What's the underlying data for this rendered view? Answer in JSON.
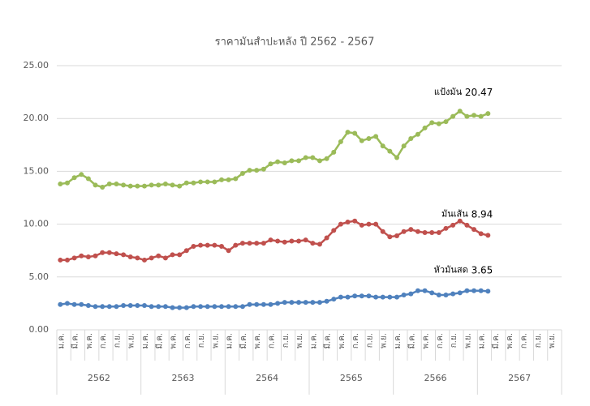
{
  "chart_data": {
    "type": "line",
    "title": "ราคามันสำปะหลัง ปี 2562 - 2567",
    "categories": [
      "ม.ค.",
      null,
      "มี.ค.",
      null,
      "พ.ค.",
      null,
      "ก.ค.",
      null,
      "ก.ย.",
      null,
      "พ.ย.",
      null,
      "ม.ค.",
      null,
      "มี.ค.",
      null,
      "พ.ค.",
      null,
      "ก.ค.",
      null,
      "ก.ย.",
      null,
      "พ.ย.",
      null,
      "ม.ค.",
      null,
      "มี.ค.",
      null,
      "พ.ค.",
      null,
      "ก.ค.",
      null,
      "ก.ย.",
      null,
      "พ.ย.",
      null,
      "ม.ค.",
      null,
      "มี.ค.",
      null,
      "พ.ค.",
      null,
      "ก.ค.",
      null,
      "ก.ย.",
      null,
      "พ.ย.",
      null,
      "ม.ค.",
      null,
      "มี.ค.",
      null,
      "พ.ค.",
      null,
      "ก.ค.",
      null,
      "ก.ย.",
      null,
      "พ.ย.",
      null,
      "ม.ค.",
      null,
      "มี.ค.",
      null,
      "พ.ค.",
      null,
      "ก.ค.",
      null,
      "ก.ย.",
      null,
      "พ.ย.",
      null
    ],
    "years": [
      "2562",
      "2563",
      "2564",
      "2565",
      "2566",
      "2567"
    ],
    "series": [
      {
        "name": "แป้งมัน",
        "color": "#9bbb59",
        "values": [
          13.8,
          13.9,
          14.4,
          14.7,
          14.3,
          13.7,
          13.5,
          13.8,
          13.8,
          13.7,
          13.6,
          13.6,
          13.6,
          13.7,
          13.7,
          13.8,
          13.7,
          13.6,
          13.9,
          13.9,
          14.0,
          14.0,
          14.0,
          14.2,
          14.2,
          14.3,
          14.8,
          15.1,
          15.1,
          15.2,
          15.7,
          15.9,
          15.8,
          16.0,
          16.0,
          16.3,
          16.3,
          16.0,
          16.2,
          16.8,
          17.8,
          18.7,
          18.6,
          17.9,
          18.1,
          18.3,
          17.4,
          16.9,
          16.3,
          17.4,
          18.1,
          18.5,
          19.1,
          19.6,
          19.5,
          19.7,
          20.2,
          20.7,
          20.2,
          20.3,
          20.2,
          20.47,
          null,
          null,
          null,
          null,
          null,
          null,
          null,
          null,
          null,
          null
        ]
      },
      {
        "name": "มันเส้น",
        "color": "#c0504d",
        "values": [
          6.6,
          6.6,
          6.8,
          7.0,
          6.9,
          7.0,
          7.3,
          7.3,
          7.2,
          7.1,
          6.9,
          6.8,
          6.6,
          6.8,
          7.0,
          6.8,
          7.1,
          7.1,
          7.5,
          7.9,
          8.0,
          8.0,
          8.0,
          7.9,
          7.5,
          8.0,
          8.2,
          8.2,
          8.2,
          8.2,
          8.5,
          8.4,
          8.3,
          8.4,
          8.4,
          8.5,
          8.2,
          8.1,
          8.7,
          9.4,
          10.0,
          10.2,
          10.3,
          9.9,
          10.0,
          10.0,
          9.3,
          8.8,
          8.9,
          9.3,
          9.5,
          9.3,
          9.2,
          9.2,
          9.2,
          9.6,
          9.9,
          10.3,
          9.9,
          9.5,
          9.1,
          8.94,
          null,
          null,
          null,
          null,
          null,
          null,
          null,
          null,
          null,
          null
        ]
      },
      {
        "name": "หัวมันสด",
        "color": "#4f81bd",
        "values": [
          2.4,
          2.5,
          2.4,
          2.4,
          2.3,
          2.2,
          2.2,
          2.2,
          2.2,
          2.3,
          2.3,
          2.3,
          2.3,
          2.2,
          2.2,
          2.2,
          2.1,
          2.1,
          2.1,
          2.2,
          2.2,
          2.2,
          2.2,
          2.2,
          2.2,
          2.2,
          2.2,
          2.4,
          2.4,
          2.4,
          2.4,
          2.5,
          2.6,
          2.6,
          2.6,
          2.6,
          2.6,
          2.6,
          2.7,
          2.9,
          3.1,
          3.1,
          3.2,
          3.2,
          3.2,
          3.1,
          3.1,
          3.1,
          3.1,
          3.3,
          3.4,
          3.7,
          3.7,
          3.5,
          3.3,
          3.3,
          3.4,
          3.5,
          3.7,
          3.7,
          3.7,
          3.65,
          null,
          null,
          null,
          null,
          null,
          null,
          null,
          null,
          null,
          null
        ]
      }
    ],
    "ylim": [
      0,
      25
    ],
    "yticks": [
      {
        "value": 0,
        "label": "0.00"
      },
      {
        "value": 5,
        "label": "5.00"
      },
      {
        "value": 10,
        "label": "10.00"
      },
      {
        "value": 15,
        "label": "15.00"
      },
      {
        "value": 20,
        "label": "20.00"
      },
      {
        "value": 25,
        "label": "25.00"
      }
    ],
    "grid": true
  }
}
